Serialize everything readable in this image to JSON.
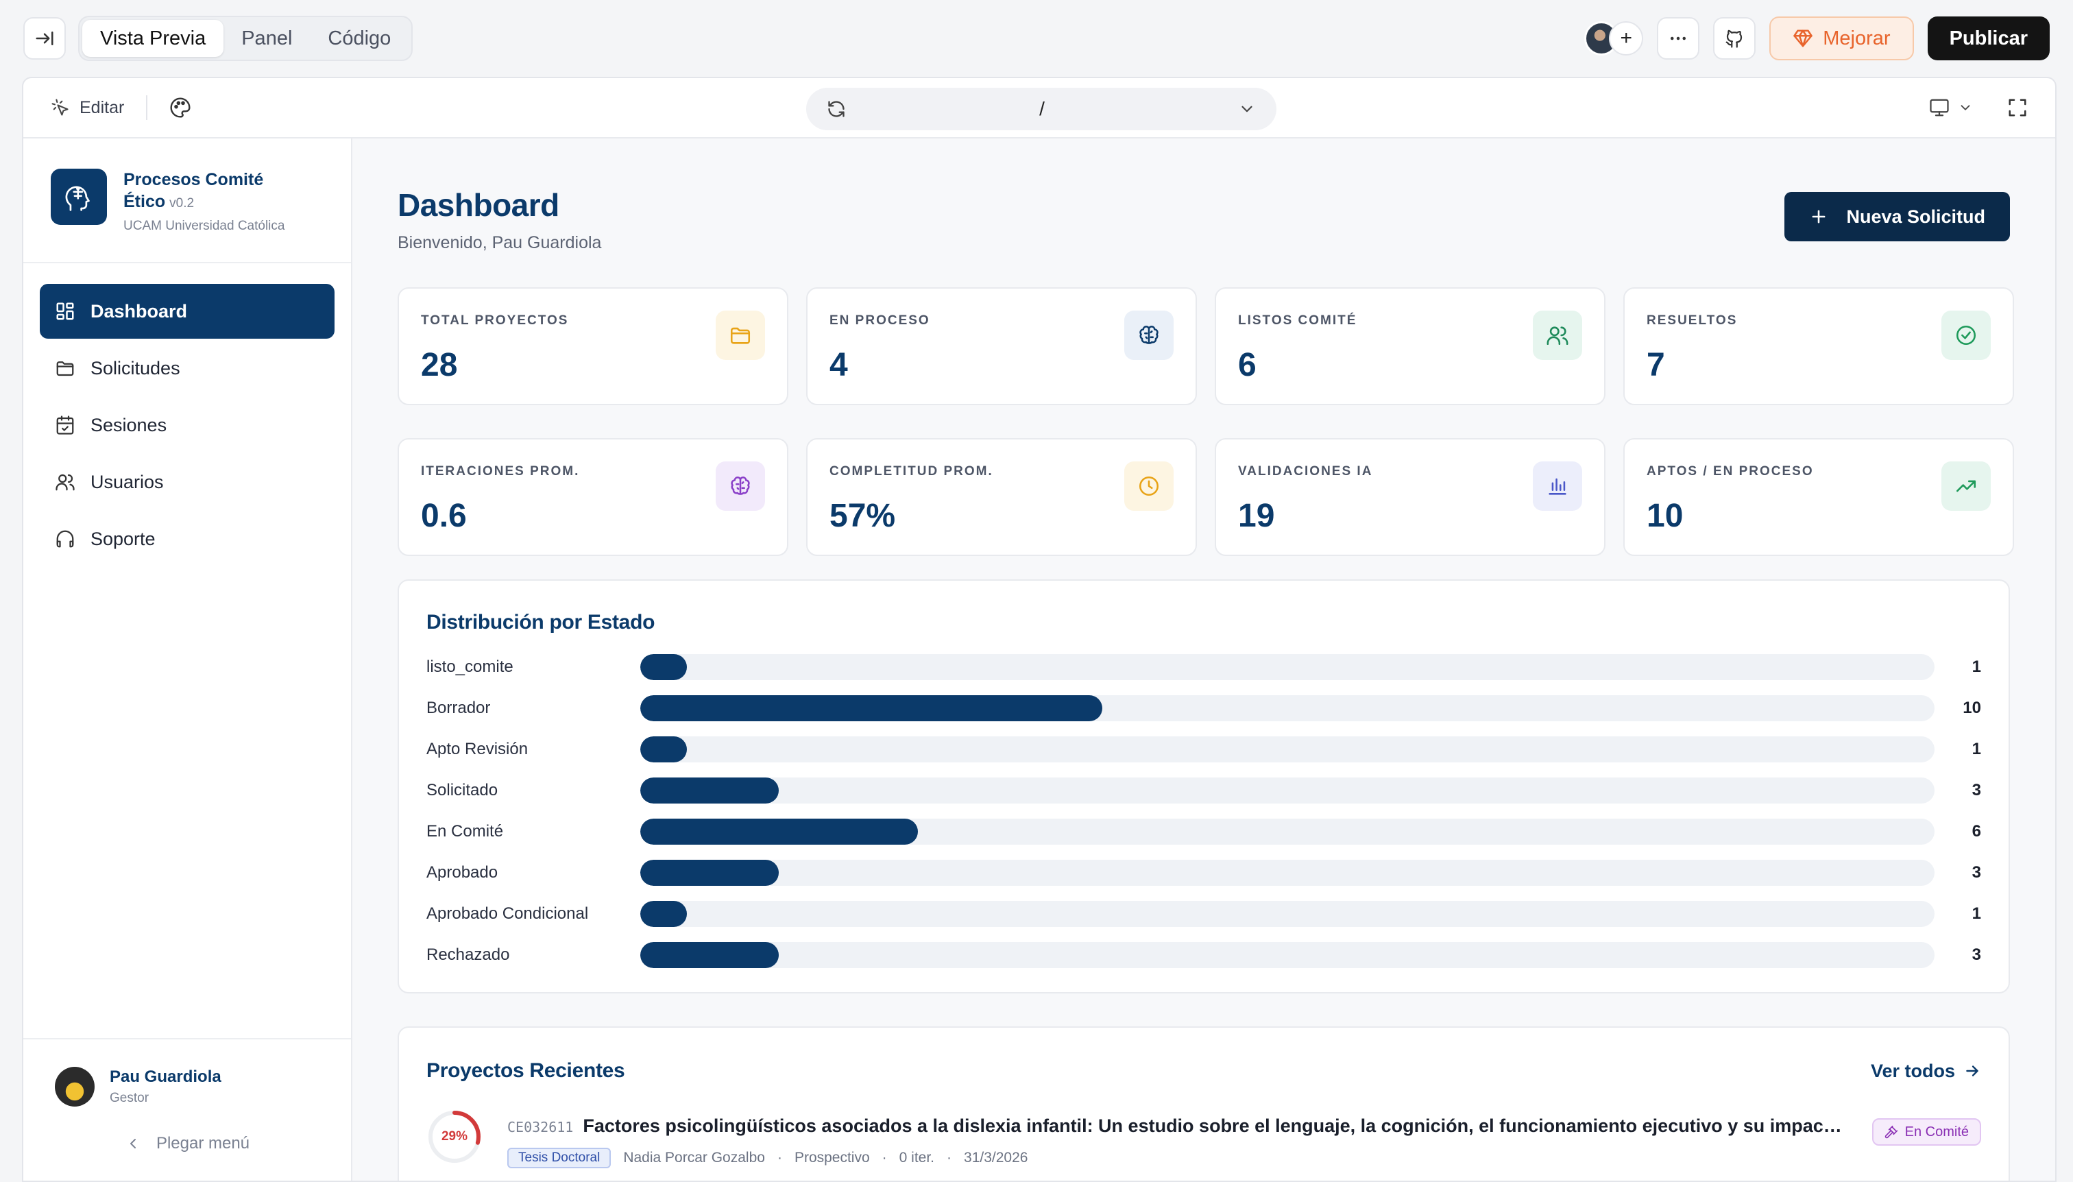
{
  "toolbar": {
    "tabs": [
      {
        "label": "Vista Previa"
      },
      {
        "label": "Panel"
      },
      {
        "label": "Código"
      }
    ],
    "mejorar_label": "Mejorar",
    "publicar_label": "Publicar",
    "accent_color": "#e8642c"
  },
  "frame": {
    "edit_label": "Editar",
    "url": "/"
  },
  "sidebar": {
    "app_name": "Procesos Comité Ético",
    "version": "v0.2",
    "org": "UCAM Universidad Católica",
    "items": [
      {
        "label": "Dashboard",
        "icon": "grid-icon",
        "active": true
      },
      {
        "label": "Solicitudes",
        "icon": "folder-icon"
      },
      {
        "label": "Sesiones",
        "icon": "calendar-icon"
      },
      {
        "label": "Usuarios",
        "icon": "users-icon"
      },
      {
        "label": "Soporte",
        "icon": "headphones-icon"
      }
    ],
    "user": {
      "name": "Pau Guardiola",
      "role": "Gestor"
    },
    "collapse_label": "Plegar menú"
  },
  "header": {
    "title": "Dashboard",
    "subtitle": "Bienvenido, Pau Guardiola",
    "new_button": "Nueva Solicitud"
  },
  "stats": [
    {
      "label": "Total Proyectos",
      "value": "28",
      "icon": "folder-icon",
      "color": "#e8a317",
      "bg": "#fdf5e2"
    },
    {
      "label": "En Proceso",
      "value": "4",
      "icon": "brain-icon",
      "color": "#0b3a6a",
      "bg": "#eaf0f8"
    },
    {
      "label": "Listos Comité",
      "value": "6",
      "icon": "users-icon",
      "color": "#1e8a5a",
      "bg": "#e6f5ee"
    },
    {
      "label": "Resueltos",
      "value": "7",
      "icon": "check-circle-icon",
      "color": "#1e9a5a",
      "bg": "#e6f5ee"
    },
    {
      "label": "Iteraciones Prom.",
      "value": "0.6",
      "icon": "brain-icon",
      "color": "#8a3fc8",
      "bg": "#f2eafb"
    },
    {
      "label": "Completitud Prom.",
      "value": "57%",
      "icon": "clock-icon",
      "color": "#e8a317",
      "bg": "#fdf5e2"
    },
    {
      "label": "Validaciones IA",
      "value": "19",
      "icon": "bar-chart-icon",
      "color": "#4a57c8",
      "bg": "#eceefb"
    },
    {
      "label": "Aptos / En Proceso",
      "value": "10",
      "icon": "trending-up-icon",
      "color": "#1e9a5a",
      "bg": "#e6f5ee"
    }
  ],
  "distribution": {
    "title": "Distribución por Estado",
    "bar_color": "#0b3a6a",
    "max": 28,
    "rows": [
      {
        "label": "listo_comite",
        "count": 1
      },
      {
        "label": "Borrador",
        "count": 10
      },
      {
        "label": "Apto Revisión",
        "count": 1
      },
      {
        "label": "Solicitado",
        "count": 3
      },
      {
        "label": "En Comité",
        "count": 6
      },
      {
        "label": "Aprobado",
        "count": 3
      },
      {
        "label": "Aprobado Condicional",
        "count": 1
      },
      {
        "label": "Rechazado",
        "count": 3
      }
    ]
  },
  "recent": {
    "title": "Proyectos Recientes",
    "see_all": "Ver todos",
    "projects": [
      {
        "progress": 0.29,
        "progress_label": "29%",
        "code": "CE032611",
        "title": "Factores psicolingüísticos asociados a la dislexia infantil: Un estudio sobre el lenguaje, la cognición, el funcionamiento ejecutivo y su impacto e...",
        "tag": "Tesis Doctoral",
        "author": "Nadia Porcar Gozalbo",
        "type": "Prospectivo",
        "iterations": "0 iter.",
        "date": "31/3/2026",
        "status": "En Comité"
      }
    ]
  }
}
